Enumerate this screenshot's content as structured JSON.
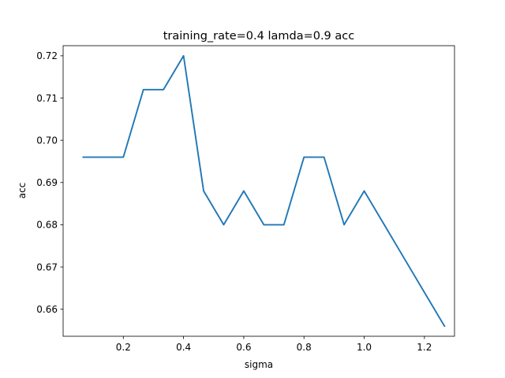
{
  "chart_data": {
    "type": "line",
    "title": "training_rate=0.4 lamda=0.9 acc",
    "xlabel": "sigma",
    "ylabel": "acc",
    "xlim": [
      0.0,
      1.3
    ],
    "ylim": [
      0.6536,
      0.7224
    ],
    "xticks": [
      0.2,
      0.4,
      0.6,
      0.8,
      1.0,
      1.2
    ],
    "xtick_labels": [
      "0.2",
      "0.4",
      "0.6",
      "0.8",
      "1.0",
      "1.2"
    ],
    "yticks": [
      0.66,
      0.67,
      0.68,
      0.69,
      0.7,
      0.71,
      0.72
    ],
    "ytick_labels": [
      "0.66",
      "0.67",
      "0.68",
      "0.69",
      "0.70",
      "0.71",
      "0.72"
    ],
    "grid": false,
    "series": [
      {
        "color": "#1f77b4",
        "x": [
          0.0667,
          0.1333,
          0.2,
          0.2667,
          0.3333,
          0.4,
          0.4667,
          0.5333,
          0.6,
          0.6667,
          0.7333,
          0.8,
          0.8667,
          0.9333,
          1.0,
          1.0667,
          1.1333,
          1.2,
          1.2667
        ],
        "y": [
          0.696,
          0.696,
          0.696,
          0.712,
          0.712,
          0.72,
          0.688,
          0.68,
          0.688,
          0.68,
          0.68,
          0.696,
          0.696,
          0.68,
          0.688,
          0.68,
          0.672,
          0.664,
          0.656
        ]
      }
    ]
  }
}
